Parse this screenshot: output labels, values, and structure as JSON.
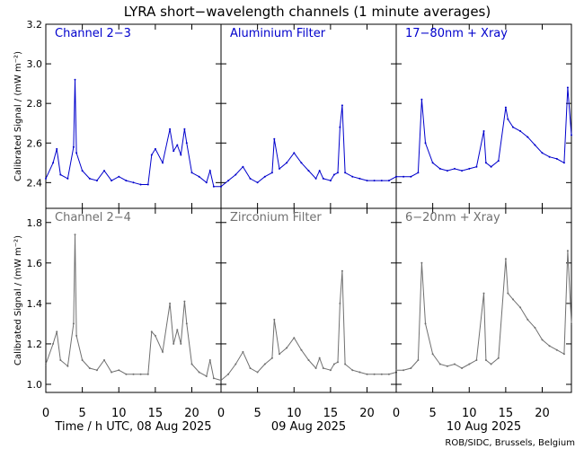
{
  "title": "LYRA short−wavelength channels (1 minute averages)",
  "credit": "ROB/SIDC, Brussels, Belgium",
  "ylabel": "Calibrated Signal / (mW m⁻²)",
  "colors": {
    "top": "#0000cc",
    "bottom": "#707070",
    "axes": "#000000"
  },
  "day_labels": [
    "Time / h UTC, 08 Aug 2025",
    "09 Aug 2025",
    "10 Aug 2025"
  ],
  "chart_data": [
    {
      "type": "scatter",
      "row": "top",
      "column": 1,
      "label": "Channel 2−3",
      "xticks": [
        0,
        5,
        10,
        15,
        20
      ],
      "xlim": [
        0,
        24
      ],
      "yticks": [
        "2.4",
        "2.6",
        "2.8",
        "3.0",
        "3.2"
      ],
      "ylim": [
        2.27,
        3.2
      ],
      "x": [
        0,
        1,
        1.5,
        2,
        3,
        3.8,
        4,
        4.2,
        5,
        6,
        7,
        8,
        9,
        10,
        11,
        12,
        13,
        14,
        14.5,
        15,
        16,
        17,
        17.5,
        18,
        18.5,
        19,
        19.3,
        20,
        21,
        22,
        22.5,
        23,
        24
      ],
      "y": [
        2.42,
        2.5,
        2.57,
        2.44,
        2.42,
        2.58,
        2.92,
        2.55,
        2.46,
        2.42,
        2.41,
        2.46,
        2.41,
        2.43,
        2.41,
        2.4,
        2.39,
        2.39,
        2.54,
        2.57,
        2.5,
        2.67,
        2.56,
        2.59,
        2.54,
        2.67,
        2.6,
        2.45,
        2.43,
        2.4,
        2.46,
        2.38,
        2.38
      ]
    },
    {
      "type": "scatter",
      "row": "top",
      "column": 2,
      "label": "Aluminium Filter",
      "xticks": [
        0,
        5,
        10,
        15,
        20
      ],
      "xlim": [
        0,
        24
      ],
      "yticks": [
        "2.4",
        "2.6",
        "2.8",
        "3.0",
        "3.2"
      ],
      "ylim": [
        2.27,
        3.2
      ],
      "x": [
        0,
        1,
        2,
        3,
        4,
        5,
        6,
        7,
        7.3,
        8,
        9,
        10,
        11,
        12,
        13,
        13.5,
        14,
        15,
        15.5,
        16,
        16.3,
        16.6,
        17,
        18,
        19,
        20,
        21,
        22,
        23,
        24
      ],
      "y": [
        2.38,
        2.41,
        2.44,
        2.48,
        2.42,
        2.4,
        2.43,
        2.45,
        2.62,
        2.47,
        2.5,
        2.55,
        2.5,
        2.46,
        2.42,
        2.46,
        2.42,
        2.41,
        2.44,
        2.45,
        2.68,
        2.79,
        2.45,
        2.43,
        2.42,
        2.41,
        2.41,
        2.41,
        2.41,
        2.43
      ]
    },
    {
      "type": "scatter",
      "row": "top",
      "column": 3,
      "label": "17−80nm + Xray",
      "xticks": [
        0,
        5,
        10,
        15,
        20
      ],
      "xlim": [
        0,
        24
      ],
      "yticks": [
        "2.4",
        "2.6",
        "2.8",
        "3.0",
        "3.2"
      ],
      "ylim": [
        2.27,
        3.2
      ],
      "x": [
        0,
        1,
        2,
        3,
        3.5,
        4,
        5,
        6,
        7,
        8,
        9,
        10,
        11,
        12,
        12.3,
        13,
        14,
        15,
        15.3,
        16,
        17,
        18,
        19,
        20,
        21,
        22,
        23,
        23.5,
        24
      ],
      "y": [
        2.43,
        2.43,
        2.43,
        2.45,
        2.82,
        2.6,
        2.5,
        2.47,
        2.46,
        2.47,
        2.46,
        2.47,
        2.48,
        2.66,
        2.5,
        2.48,
        2.51,
        2.78,
        2.72,
        2.68,
        2.66,
        2.63,
        2.59,
        2.55,
        2.53,
        2.52,
        2.5,
        2.88,
        2.64
      ]
    },
    {
      "type": "scatter",
      "row": "bottom",
      "column": 1,
      "label": "Channel 2−4",
      "xticks": [
        0,
        5,
        10,
        15,
        20
      ],
      "xlim": [
        0,
        24
      ],
      "yticks": [
        "1.0",
        "1.2",
        "1.4",
        "1.6",
        "1.8"
      ],
      "ylim": [
        0.96,
        1.87
      ],
      "x": [
        0,
        1,
        1.5,
        2,
        3,
        3.8,
        4,
        4.2,
        5,
        6,
        7,
        8,
        9,
        10,
        11,
        12,
        13,
        14,
        14.5,
        15,
        16,
        17,
        17.5,
        18,
        18.5,
        19,
        19.3,
        20,
        21,
        22,
        22.5,
        23,
        24
      ],
      "y": [
        1.1,
        1.2,
        1.26,
        1.12,
        1.09,
        1.3,
        1.74,
        1.24,
        1.12,
        1.08,
        1.07,
        1.12,
        1.06,
        1.07,
        1.05,
        1.05,
        1.05,
        1.05,
        1.26,
        1.24,
        1.16,
        1.4,
        1.2,
        1.27,
        1.2,
        1.41,
        1.3,
        1.1,
        1.06,
        1.04,
        1.12,
        1.03,
        1.02
      ]
    },
    {
      "type": "scatter",
      "row": "bottom",
      "column": 2,
      "label": "Zirconium Filter",
      "xticks": [
        0,
        5,
        10,
        15,
        20
      ],
      "xlim": [
        0,
        24
      ],
      "yticks": [
        "1.0",
        "1.2",
        "1.4",
        "1.6",
        "1.8"
      ],
      "ylim": [
        0.96,
        1.87
      ],
      "x": [
        0,
        1,
        2,
        3,
        4,
        5,
        6,
        7,
        7.3,
        8,
        9,
        10,
        11,
        12,
        13,
        13.5,
        14,
        15,
        15.5,
        16,
        16.3,
        16.6,
        17,
        18,
        19,
        20,
        21,
        22,
        23,
        24
      ],
      "y": [
        1.02,
        1.05,
        1.1,
        1.16,
        1.08,
        1.06,
        1.1,
        1.13,
        1.32,
        1.15,
        1.18,
        1.23,
        1.17,
        1.12,
        1.08,
        1.13,
        1.08,
        1.07,
        1.1,
        1.11,
        1.4,
        1.56,
        1.1,
        1.07,
        1.06,
        1.05,
        1.05,
        1.05,
        1.05,
        1.06
      ]
    },
    {
      "type": "scatter",
      "row": "bottom",
      "column": 3,
      "label": "6−20nm + Xray",
      "xticks": [
        0,
        5,
        10,
        15,
        20
      ],
      "xlim": [
        0,
        24
      ],
      "yticks": [
        "1.0",
        "1.2",
        "1.4",
        "1.6",
        "1.8"
      ],
      "ylim": [
        0.96,
        1.87
      ],
      "x": [
        0,
        1,
        2,
        3,
        3.5,
        4,
        5,
        6,
        7,
        8,
        9,
        10,
        11,
        12,
        12.3,
        13,
        14,
        15,
        15.3,
        16,
        17,
        18,
        19,
        20,
        21,
        22,
        23,
        23.5,
        24
      ],
      "y": [
        1.07,
        1.07,
        1.08,
        1.12,
        1.6,
        1.3,
        1.15,
        1.1,
        1.09,
        1.1,
        1.08,
        1.1,
        1.12,
        1.45,
        1.12,
        1.1,
        1.13,
        1.62,
        1.45,
        1.42,
        1.38,
        1.32,
        1.28,
        1.22,
        1.19,
        1.17,
        1.15,
        1.66,
        1.3
      ]
    }
  ]
}
